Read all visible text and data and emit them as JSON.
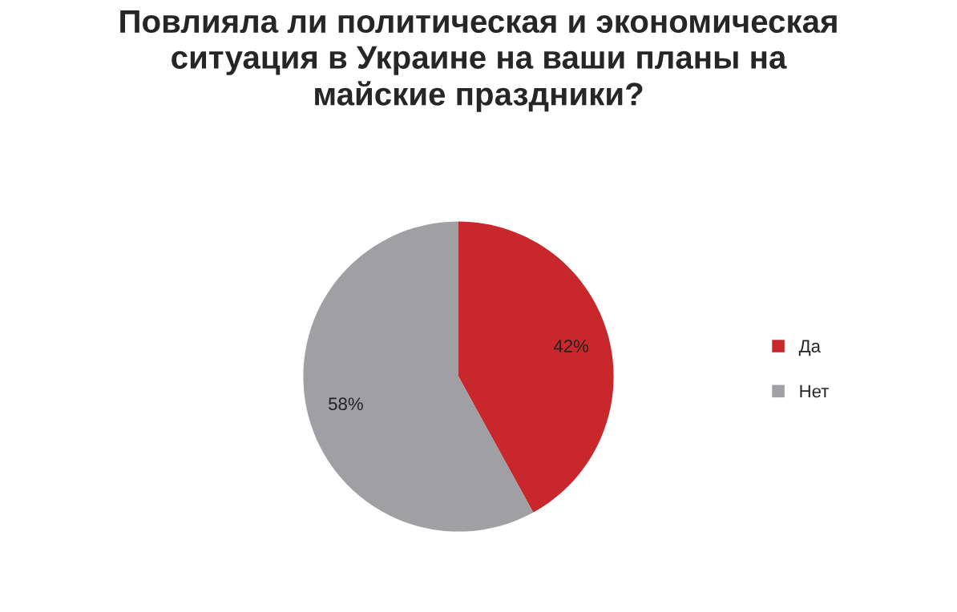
{
  "chart_data": {
    "type": "pie",
    "title": "Повлияла ли политическая и экономическая\nситуация в Украине на ваши планы на\nмайские праздники?",
    "categories": [
      "Да",
      "Нет"
    ],
    "values": [
      42,
      58
    ],
    "colors": [
      "#c8282c",
      "#a0a0a4"
    ],
    "value_labels": [
      "42%",
      "58%"
    ],
    "legend": "right"
  }
}
